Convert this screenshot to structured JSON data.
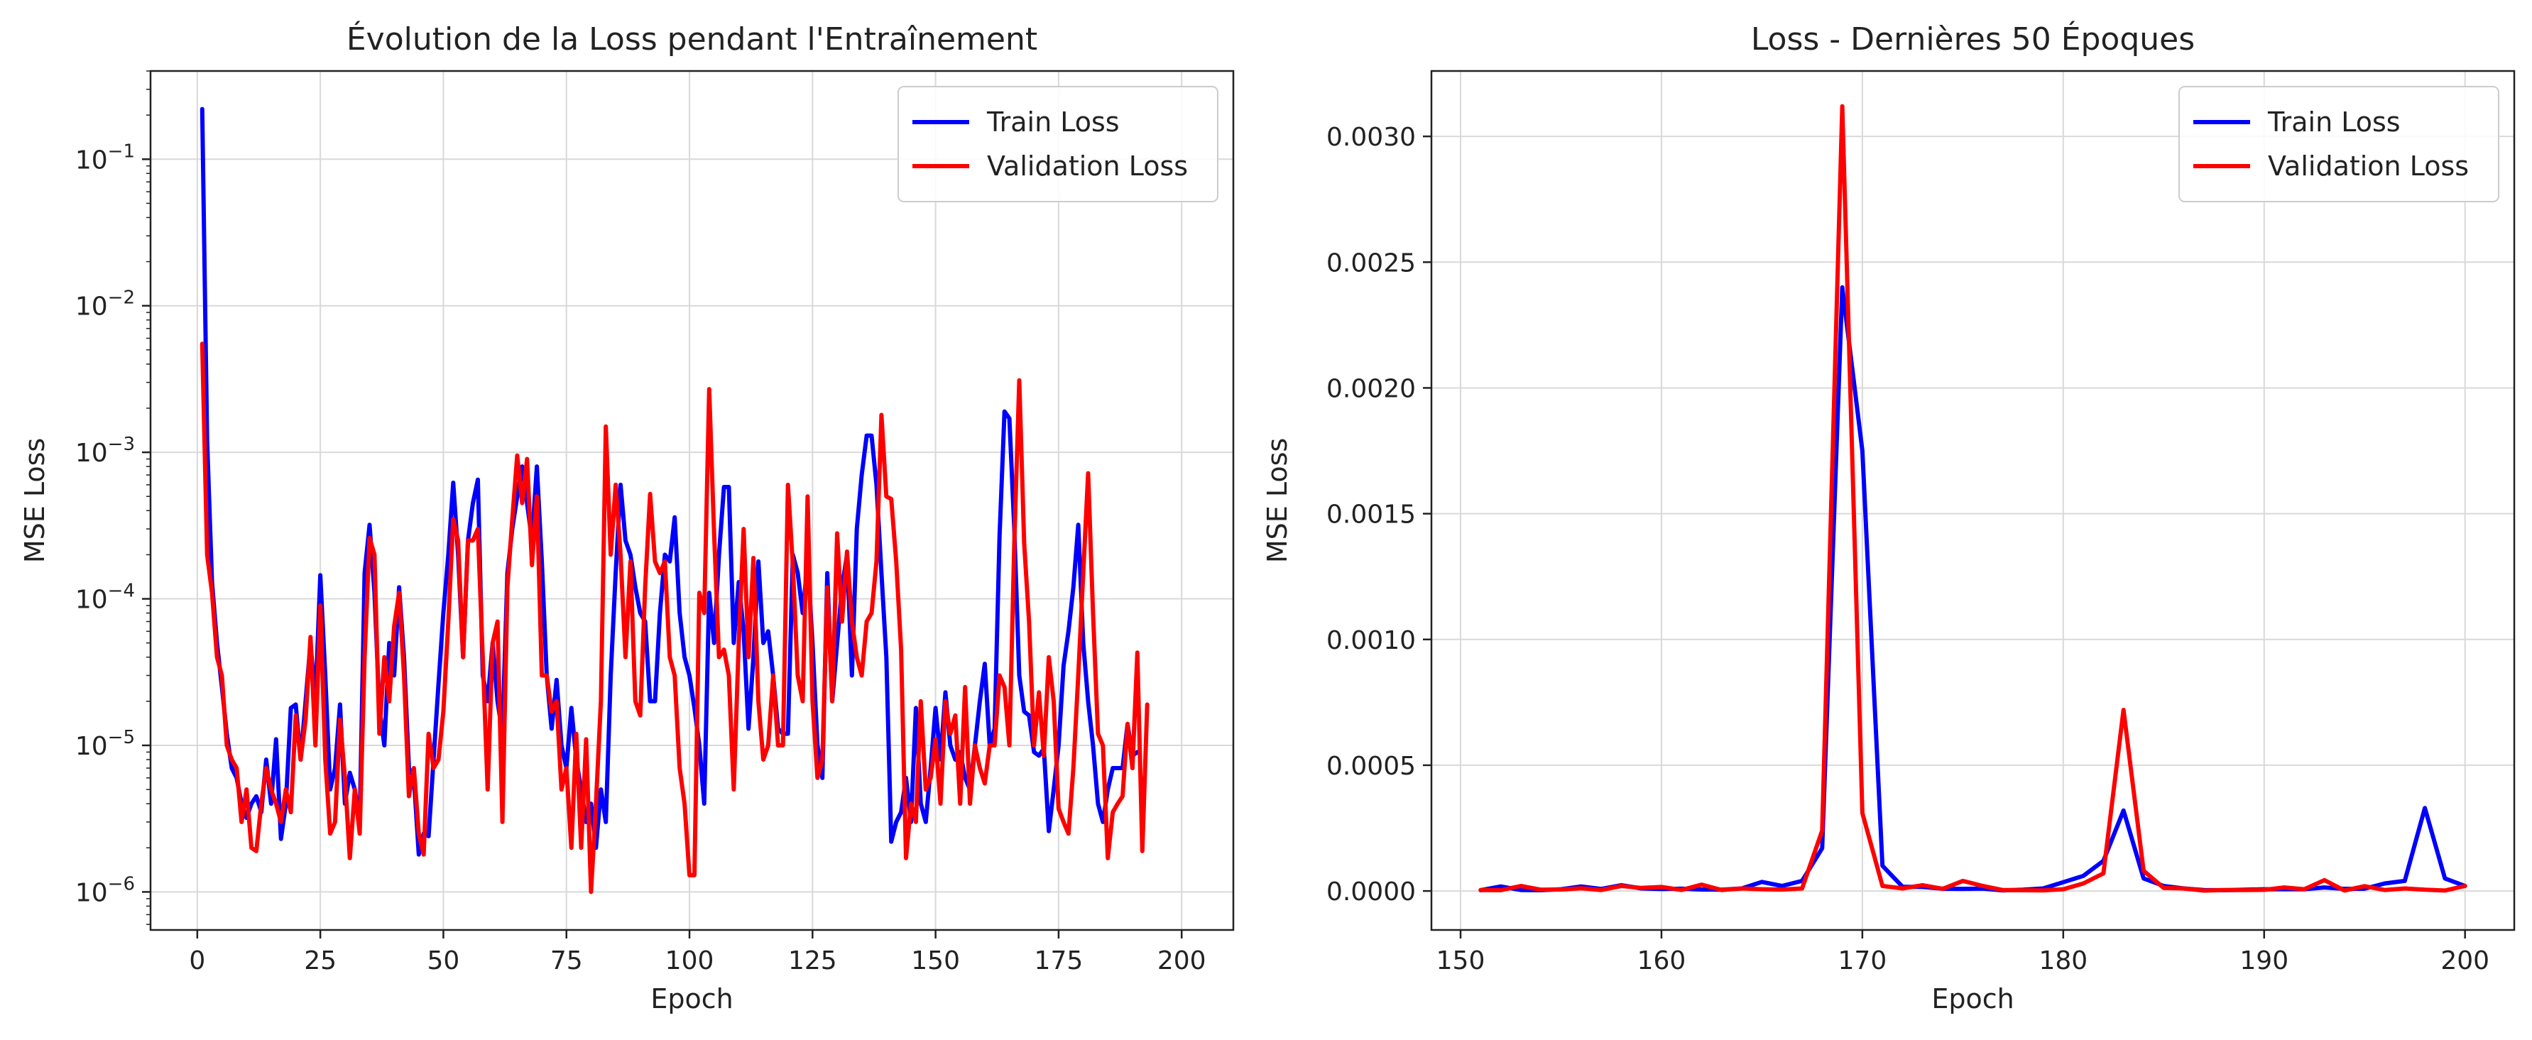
{
  "colors": {
    "train": "#0000ff",
    "validation": "#ff0000",
    "grid": "#d9d9d9",
    "axis": "#222222"
  },
  "chart_data": [
    {
      "type": "line",
      "title": "Évolution de la Loss pendant l'Entraînement",
      "xlabel": "Epoch",
      "ylabel": "MSE Loss",
      "yscale": "log",
      "xlim": [
        -9.5,
        210.5
      ],
      "ylim": [
        5.5e-07,
        0.4
      ],
      "xticks": [
        0,
        25,
        50,
        75,
        100,
        125,
        150,
        175,
        200
      ],
      "yticks": [
        1e-06,
        1e-05,
        0.0001,
        0.001,
        0.01,
        0.1
      ],
      "ytick_labels": [
        {
          "base": "10",
          "exp": "−6"
        },
        {
          "base": "10",
          "exp": "−5"
        },
        {
          "base": "10",
          "exp": "−4"
        },
        {
          "base": "10",
          "exp": "−3"
        },
        {
          "base": "10",
          "exp": "−2"
        },
        {
          "base": "10",
          "exp": "−1"
        }
      ],
      "grid": true,
      "legend": "top-right",
      "x_start": 1,
      "series": [
        {
          "name": "Train Loss",
          "color": "#0000ff",
          "values": [
            0.22,
            0.0012,
            0.00013,
            5e-05,
            2.5e-05,
            1.2e-05,
            7e-06,
            6e-06,
            4e-06,
            3.2e-06,
            4e-06,
            4.5e-06,
            3.5e-06,
            8e-06,
            4e-06,
            1.1e-05,
            2.3e-06,
            4e-06,
            1.8e-05,
            1.9e-05,
            8e-06,
            2e-05,
            5e-05,
            2e-05,
            0.000145,
            3e-05,
            5e-06,
            7e-06,
            1.9e-05,
            4e-06,
            6.5e-06,
            5e-06,
            3e-06,
            0.00015,
            0.00032,
            0.00011,
            1.8e-05,
            1e-05,
            5e-05,
            3e-05,
            0.00012,
            4e-05,
            7e-06,
            6e-06,
            1.8e-06,
            2.5e-06,
            2.4e-06,
            8e-06,
            2.6e-05,
            8e-05,
            0.0002,
            0.00062,
            0.0002,
            4e-05,
            0.00025,
            0.00045,
            0.00065,
            3e-05,
            2e-05,
            5e-05,
            2e-05,
            1.2e-05,
            0.00015,
            0.0003,
            0.0005,
            0.0008,
            0.00045,
            0.00025,
            0.0008,
            0.00018,
            3e-05,
            1.3e-05,
            2.8e-05,
            1e-05,
            7e-06,
            1.8e-05,
            8e-06,
            5e-06,
            3e-06,
            4e-06,
            2e-06,
            5e-06,
            3e-06,
            3e-05,
            0.00015,
            0.0006,
            0.00025,
            0.0002,
            0.00012,
            8e-05,
            7e-05,
            2e-05,
            2e-05,
            8e-05,
            0.0002,
            0.00018,
            0.00036,
            8e-05,
            4e-05,
            3e-05,
            1.8e-05,
            1e-05,
            4e-06,
            0.00011,
            5e-05,
            0.0002,
            0.00058,
            0.00058,
            5e-05,
            0.00013,
            6e-05,
            1.3e-05,
            4e-05,
            0.00018,
            5e-05,
            6e-05,
            3e-05,
            1.3e-05,
            1.2e-05,
            1.2e-05,
            0.0002,
            0.00015,
            8e-05,
            0.00018,
            5e-05,
            1e-05,
            6e-06,
            0.00015,
            2e-05,
            5e-05,
            0.00012,
            0.0002,
            3e-05,
            0.0003,
            0.0007,
            0.0013,
            0.0013,
            0.0006,
            0.00015,
            4e-05,
            2.2e-06,
            3e-06,
            3.5e-06,
            6e-06,
            3e-06,
            1.8e-05,
            4e-06,
            3e-06,
            7e-06,
            1.8e-05,
            8e-06,
            2.3e-05,
            1e-05,
            8e-06,
            9e-06,
            6e-06,
            5e-06,
            1e-05,
            2e-05,
            3.6e-05,
            1e-05,
            1.3e-05,
            0.000265,
            0.0019,
            0.0017,
            0.0003,
            3e-05,
            1.7e-05,
            1.6e-05,
            9e-06,
            8.5e-06,
            9.5e-06,
            2.6e-06,
            5e-06,
            1e-05,
            3.5e-05,
            6e-05,
            0.00012,
            0.00032,
            5e-05,
            2e-05,
            1e-05,
            4e-06,
            3e-06,
            5e-06,
            7e-06,
            7e-06,
            7e-06,
            1.4e-05,
            8.5e-06,
            9e-06
          ]
        },
        {
          "name": "Validation Loss",
          "color": "#ff0000",
          "values": [
            0.0055,
            0.0002,
            0.00011,
            4e-05,
            3e-05,
            1e-05,
            8e-06,
            7e-06,
            3e-06,
            5e-06,
            2e-06,
            1.9e-06,
            4e-06,
            7e-06,
            5e-06,
            4e-06,
            3e-06,
            5e-06,
            3.5e-06,
            1.6e-05,
            8e-06,
            1.5e-05,
            5.5e-05,
            1e-05,
            9e-05,
            8e-06,
            2.5e-06,
            3e-06,
            1.5e-05,
            6e-06,
            1.7e-06,
            5e-06,
            2.5e-06,
            4e-05,
            0.00026,
            0.0002,
            1.2e-05,
            4e-05,
            2e-05,
            6.5e-05,
            0.00011,
            3e-05,
            4.5e-06,
            7e-06,
            2.5e-06,
            1.8e-06,
            1.2e-05,
            7e-06,
            8e-06,
            1.7e-05,
            7e-05,
            0.00035,
            0.00025,
            4e-05,
            0.00025,
            0.00025,
            0.0003,
            4e-05,
            5e-06,
            5e-05,
            7e-05,
            3e-06,
            0.00012,
            0.00035,
            0.00095,
            0.00045,
            0.0009,
            0.00017,
            0.0005,
            3e-05,
            3e-05,
            1.7e-05,
            2e-05,
            5e-06,
            7e-06,
            2e-06,
            1.2e-05,
            2e-06,
            1.1e-05,
            1e-06,
            4e-06,
            2e-05,
            0.0015,
            0.0002,
            0.0006,
            0.0002,
            4e-05,
            0.00018,
            2e-05,
            1.6e-05,
            0.00012,
            0.00052,
            0.00018,
            0.00015,
            0.00018,
            4e-05,
            3e-05,
            7e-06,
            4e-06,
            1.3e-06,
            1.3e-06,
            0.00011,
            8e-05,
            0.0027,
            0.00028,
            4e-05,
            4.5e-05,
            3e-05,
            5e-06,
            5e-05,
            0.0003,
            4e-05,
            0.00019,
            2e-05,
            8e-06,
            1e-05,
            3e-05,
            1e-05,
            1e-05,
            0.0006,
            0.00017,
            3e-05,
            2e-05,
            0.0005,
            2e-05,
            6e-06,
            8e-06,
            0.00012,
            2e-05,
            0.00028,
            7e-05,
            0.00021,
            7e-05,
            4e-05,
            3e-05,
            7e-05,
            8e-05,
            0.00018,
            0.0018,
            0.0005,
            0.00048,
            0.00018,
            4.5e-05,
            1.7e-06,
            4e-06,
            3e-06,
            2e-05,
            5e-06,
            6e-06,
            1.1e-05,
            4e-06,
            2e-05,
            1.2e-05,
            1.6e-05,
            4e-06,
            2.5e-05,
            4e-06,
            1e-05,
            7e-06,
            5.5e-06,
            1e-05,
            1e-05,
            3e-05,
            2.5e-05,
            1e-05,
            0.00024,
            0.0031,
            0.00024,
            7e-05,
            1e-05,
            2.3e-05,
            8.5e-06,
            4e-05,
            2e-05,
            3.7e-06,
            3e-06,
            2.5e-06,
            7e-06,
            3e-05,
            0.00015,
            0.00072,
            8e-05,
            1.2e-05,
            1e-05,
            1.7e-06,
            3.5e-06,
            4e-06,
            4.5e-06,
            1.4e-05,
            7e-06,
            4.3e-05,
            1.9e-06,
            1.9e-05
          ]
        }
      ]
    },
    {
      "type": "line",
      "title": "Loss - Dernières 50 Époques",
      "xlabel": "Epoch",
      "ylabel": "MSE Loss",
      "yscale": "linear",
      "xlim": [
        148.55,
        202.45
      ],
      "ylim": [
        -0.000155,
        0.00326
      ],
      "xticks": [
        150,
        160,
        170,
        180,
        190,
        200
      ],
      "yticks": [
        0.0,
        0.0005,
        0.001,
        0.0015,
        0.002,
        0.0025,
        0.003
      ],
      "ytick_labels": [
        "0.0000",
        "0.0005",
        "0.0010",
        "0.0015",
        "0.0020",
        "0.0025",
        "0.0030"
      ],
      "grid": true,
      "legend": "top-right",
      "x_start": 151,
      "series": [
        {
          "name": "Train Loss",
          "color": "#0000ff",
          "values": [
            3e-06,
            1.8e-05,
            4e-06,
            3e-06,
            7e-06,
            1.8e-05,
            8e-06,
            2.3e-05,
            1e-05,
            8e-06,
            9e-06,
            6e-06,
            5e-06,
            1e-05,
            3.6e-05,
            2e-05,
            4e-05,
            0.00017,
            0.0024,
            0.00175,
            0.0001,
            1.7e-05,
            1.6e-05,
            9e-06,
            8.5e-06,
            9.5e-06,
            2.6e-06,
            5e-06,
            1e-05,
            3.5e-05,
            6e-05,
            0.00012,
            0.00032,
            5e-05,
            2e-05,
            1e-05,
            4e-06,
            3e-06,
            5e-06,
            7e-06,
            7e-06,
            7e-06,
            1.4e-05,
            8.5e-06,
            9e-06,
            3e-05,
            4e-05,
            0.00033,
            5e-05,
            2e-05
          ]
        },
        {
          "name": "Validation Loss",
          "color": "#ff0000",
          "values": [
            4e-06,
            3e-06,
            2e-05,
            5e-06,
            6e-06,
            1.1e-05,
            4e-06,
            2e-05,
            1.2e-05,
            1.6e-05,
            4e-06,
            2.5e-05,
            4e-06,
            1e-05,
            7e-06,
            5.5e-06,
            1e-05,
            0.00024,
            0.00312,
            0.00031,
            2e-05,
            1e-05,
            2.3e-05,
            8.5e-06,
            4e-05,
            2e-05,
            3.7e-06,
            3e-06,
            2.5e-06,
            7e-06,
            3e-05,
            7e-05,
            0.00072,
            8e-05,
            1.2e-05,
            1e-05,
            1.7e-06,
            3.5e-06,
            4e-06,
            4.5e-06,
            1.4e-05,
            7e-06,
            4.3e-05,
            1.9e-06,
            1.9e-05,
            4e-06,
            1e-05,
            5e-06,
            2e-06,
            2e-05
          ]
        }
      ]
    }
  ]
}
